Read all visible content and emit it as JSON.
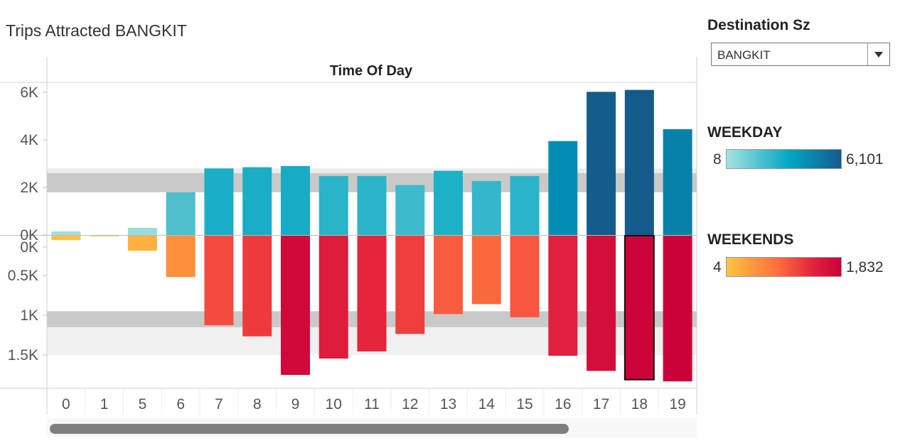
{
  "title": "Trips Attracted BANGKIT",
  "filter": {
    "label": "Destination Sz",
    "value": "BANGKIT"
  },
  "legend": {
    "weekday": {
      "title": "WEEKDAY",
      "min": "8",
      "max": "6,101"
    },
    "weekends": {
      "title": "WEEKENDS",
      "min": "4",
      "max": "1,832"
    }
  },
  "chart_data": {
    "type": "bar",
    "header": "Time Of Day",
    "categories": [
      "0",
      "1",
      "5",
      "6",
      "7",
      "8",
      "9",
      "10",
      "11",
      "12",
      "13",
      "14",
      "15",
      "16",
      "17",
      "18",
      "19"
    ],
    "series": [
      {
        "name": "WEEKDAY",
        "values": [
          150,
          8,
          300,
          1800,
          2800,
          2850,
          2900,
          2480,
          2480,
          2100,
          2700,
          2270,
          2480,
          3950,
          6020,
          6101,
          4450
        ]
      },
      {
        "name": "WEEKENDS",
        "values": [
          55,
          4,
          190,
          520,
          1125,
          1265,
          1750,
          1545,
          1455,
          1235,
          985,
          860,
          1025,
          1510,
          1700,
          1810,
          1832
        ]
      }
    ],
    "weekday_axis": {
      "ticks": [
        "6K",
        "4K",
        "2K",
        "0K"
      ],
      "ylim": [
        0,
        6500
      ]
    },
    "weekend_axis": {
      "ticks": [
        "0K",
        "0.5K",
        "1K",
        "1.5K"
      ],
      "ylim": [
        0,
        1900
      ]
    },
    "selected_category": "18",
    "weekday_band": {
      "inner": [
        1800,
        2600
      ],
      "outer": [
        1800,
        2800
      ]
    },
    "weekend_band": {
      "inner": [
        950,
        1150
      ],
      "outer": [
        950,
        1500
      ]
    }
  }
}
